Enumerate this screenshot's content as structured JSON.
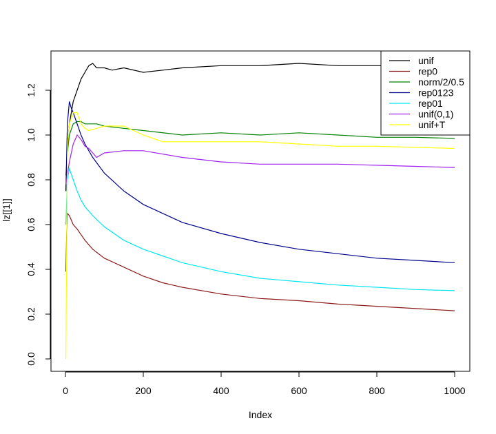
{
  "chart_data": {
    "type": "line",
    "xlabel": "Index",
    "ylabel": "lz[[1]]",
    "xlim": [
      0,
      1000
    ],
    "ylim": [
      0,
      1.35
    ],
    "xticks": [
      "0",
      "200",
      "400",
      "600",
      "800",
      "1000"
    ],
    "yticks": [
      "0.0",
      "0.2",
      "0.4",
      "0.6",
      "0.8",
      "1.0",
      "1.2"
    ],
    "grid": false,
    "legend_position": "top-right",
    "series": [
      {
        "name": "unif",
        "color": "#000000",
        "x": [
          1,
          5,
          10,
          20,
          30,
          40,
          50,
          60,
          70,
          80,
          100,
          120,
          150,
          200,
          250,
          300,
          400,
          500,
          600,
          700,
          800,
          900,
          1000
        ],
        "y": [
          0.75,
          0.95,
          1.05,
          1.15,
          1.2,
          1.25,
          1.28,
          1.31,
          1.32,
          1.3,
          1.3,
          1.29,
          1.3,
          1.28,
          1.29,
          1.3,
          1.31,
          1.31,
          1.32,
          1.31,
          1.31,
          1.31,
          1.31
        ]
      },
      {
        "name": "rep0",
        "color": "#8b1a1a",
        "x": [
          1,
          3,
          5,
          10,
          20,
          30,
          50,
          70,
          100,
          150,
          200,
          250,
          300,
          400,
          500,
          600,
          700,
          800,
          900,
          1000
        ],
        "y": [
          0.39,
          0.55,
          0.65,
          0.64,
          0.6,
          0.58,
          0.53,
          0.49,
          0.45,
          0.41,
          0.37,
          0.34,
          0.32,
          0.29,
          0.27,
          0.26,
          0.245,
          0.235,
          0.225,
          0.215
        ]
      },
      {
        "name": "norm/2/0.5",
        "color": "#008000",
        "x": [
          1,
          5,
          10,
          20,
          30,
          40,
          50,
          60,
          80,
          100,
          150,
          200,
          300,
          400,
          500,
          600,
          700,
          800,
          900,
          1000
        ],
        "y": [
          0.82,
          0.92,
          1.0,
          1.05,
          1.06,
          1.06,
          1.05,
          1.05,
          1.05,
          1.04,
          1.03,
          1.02,
          1.0,
          1.01,
          1.0,
          1.01,
          1.0,
          0.99,
          0.99,
          0.985
        ]
      },
      {
        "name": "rep0123",
        "color": "#00008b",
        "x": [
          1,
          5,
          10,
          15,
          20,
          30,
          40,
          50,
          70,
          100,
          150,
          200,
          250,
          300,
          400,
          500,
          600,
          700,
          800,
          900,
          1000
        ],
        "y": [
          0.75,
          1.05,
          1.15,
          1.12,
          1.1,
          1.05,
          1.0,
          0.96,
          0.9,
          0.83,
          0.75,
          0.69,
          0.65,
          0.61,
          0.56,
          0.52,
          0.49,
          0.47,
          0.45,
          0.44,
          0.43
        ]
      },
      {
        "name": "rep01",
        "color": "#00e5ee",
        "x": [
          1,
          5,
          10,
          20,
          30,
          40,
          50,
          70,
          100,
          150,
          200,
          250,
          300,
          400,
          500,
          600,
          700,
          800,
          900,
          1000
        ],
        "y": [
          0.6,
          0.8,
          0.85,
          0.8,
          0.75,
          0.71,
          0.68,
          0.64,
          0.59,
          0.53,
          0.49,
          0.46,
          0.43,
          0.39,
          0.36,
          0.345,
          0.33,
          0.32,
          0.31,
          0.305
        ]
      },
      {
        "name": "unif(0,1)",
        "color": "#a020f0",
        "x": [
          1,
          10,
          20,
          30,
          40,
          50,
          60,
          70,
          80,
          100,
          150,
          200,
          300,
          400,
          500,
          600,
          700,
          800,
          900,
          1000
        ],
        "y": [
          0.78,
          0.88,
          0.96,
          1.0,
          0.98,
          0.95,
          0.94,
          0.92,
          0.9,
          0.92,
          0.93,
          0.93,
          0.9,
          0.88,
          0.87,
          0.87,
          0.87,
          0.865,
          0.86,
          0.855
        ]
      },
      {
        "name": "unif+T",
        "color": "#ffff00",
        "x": [
          1,
          5,
          10,
          20,
          30,
          40,
          50,
          60,
          80,
          100,
          150,
          200,
          250,
          300,
          400,
          500,
          600,
          700,
          800,
          900,
          1000
        ],
        "y": [
          0.0,
          0.95,
          1.05,
          1.1,
          1.1,
          1.05,
          1.03,
          1.02,
          1.03,
          1.04,
          1.04,
          1.0,
          0.97,
          0.97,
          0.97,
          0.97,
          0.96,
          0.95,
          0.95,
          0.945,
          0.94
        ]
      }
    ]
  }
}
